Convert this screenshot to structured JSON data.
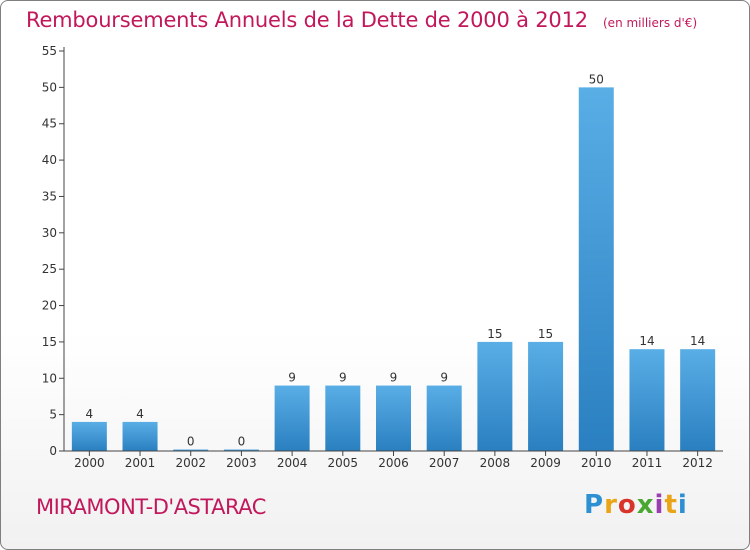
{
  "header": {
    "title": "Remboursements Annuels de la Dette de 2000 à 2012",
    "subtitle": "(en milliers d'€)"
  },
  "footer": {
    "place": "MIRAMONT-D'ASTARAC",
    "logo_text": "Proxiti"
  },
  "colors": {
    "title": "#c2185b",
    "bar_top": "#5aaee6",
    "bar_bottom": "#2a7fc0",
    "axis": "#444444",
    "grid": "#dddddd"
  },
  "chart_data": {
    "type": "bar",
    "categories": [
      "2000",
      "2001",
      "2002",
      "2003",
      "2004",
      "2005",
      "2006",
      "2007",
      "2008",
      "2009",
      "2010",
      "2011",
      "2012"
    ],
    "values": [
      4,
      4,
      0,
      0,
      9,
      9,
      9,
      9,
      15,
      15,
      50,
      14,
      14
    ],
    "data_labels": [
      "4",
      "4",
      "0",
      "0",
      "9",
      "9",
      "9",
      "9",
      "15",
      "15",
      "50",
      "14",
      "14"
    ],
    "yticks": [
      0,
      5,
      10,
      15,
      20,
      25,
      30,
      35,
      40,
      45,
      50,
      55
    ],
    "ylim": [
      0,
      55
    ],
    "grid": false
  }
}
